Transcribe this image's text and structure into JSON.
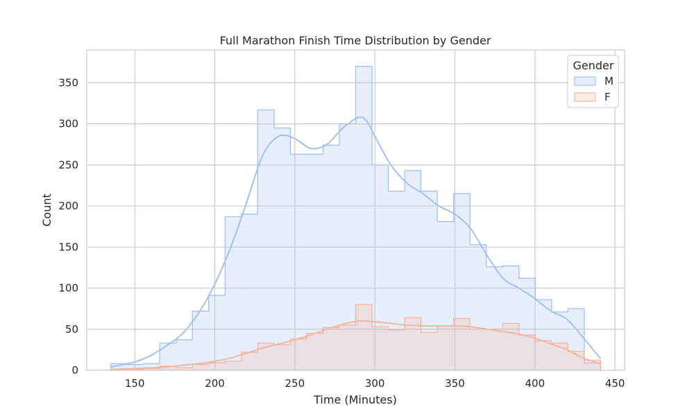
{
  "chart_data": {
    "type": "histogram",
    "title": "Full Marathon Finish Time Distribution by Gender",
    "xlabel": "Time (Minutes)",
    "ylabel": "Count",
    "xlim": [
      120,
      456
    ],
    "ylim": [
      0,
      390
    ],
    "xticks": [
      150,
      200,
      250,
      300,
      350,
      400,
      450
    ],
    "yticks": [
      0,
      50,
      100,
      150,
      200,
      250,
      300,
      350
    ],
    "grid": true,
    "legend": {
      "title": "Gender",
      "placement": "top-right"
    },
    "bin_edges": [
      135,
      145.2,
      155.4,
      165.6,
      175.8,
      186,
      196.2,
      206.4,
      216.6,
      226.8,
      237,
      247.2,
      257.4,
      267.6,
      277.8,
      288,
      298.2,
      308.4,
      318.6,
      328.8,
      339,
      349.2,
      359.4,
      369.6,
      379.8,
      390,
      400.2,
      410.4,
      420.6,
      430.8,
      441
    ],
    "series": [
      {
        "name": "M",
        "color": "#a1c0f5",
        "counts": [
          8,
          7,
          8,
          33,
          37,
          72,
          91,
          187,
          190,
          317,
          295,
          263,
          263,
          274,
          300,
          370,
          250,
          218,
          243,
          218,
          181,
          215,
          153,
          126,
          127,
          112,
          86,
          71,
          75,
          9
        ],
        "kde": [
          [
            135,
            4
          ],
          [
            150,
            10
          ],
          [
            160,
            18
          ],
          [
            170,
            30
          ],
          [
            180,
            45
          ],
          [
            190,
            70
          ],
          [
            200,
            105
          ],
          [
            210,
            150
          ],
          [
            220,
            205
          ],
          [
            230,
            262
          ],
          [
            240,
            285
          ],
          [
            250,
            282
          ],
          [
            260,
            270
          ],
          [
            270,
            275
          ],
          [
            280,
            295
          ],
          [
            290,
            308
          ],
          [
            295,
            303
          ],
          [
            300,
            285
          ],
          [
            310,
            250
          ],
          [
            320,
            228
          ],
          [
            330,
            215
          ],
          [
            340,
            200
          ],
          [
            350,
            190
          ],
          [
            360,
            172
          ],
          [
            370,
            140
          ],
          [
            380,
            112
          ],
          [
            390,
            100
          ],
          [
            400,
            87
          ],
          [
            410,
            72
          ],
          [
            420,
            62
          ],
          [
            430,
            40
          ],
          [
            441,
            14
          ]
        ]
      },
      {
        "name": "F",
        "color": "#f5b49b",
        "counts": [
          1,
          1,
          2,
          5,
          3,
          7,
          9,
          11,
          22,
          33,
          31,
          38,
          45,
          52,
          55,
          80,
          53,
          49,
          64,
          46,
          54,
          63,
          50,
          50,
          57,
          43,
          36,
          33,
          23,
          12
        ],
        "kde": [
          [
            135,
            1
          ],
          [
            150,
            2
          ],
          [
            160,
            3
          ],
          [
            170,
            4
          ],
          [
            180,
            6
          ],
          [
            190,
            8
          ],
          [
            200,
            11
          ],
          [
            210,
            15
          ],
          [
            220,
            21
          ],
          [
            230,
            27
          ],
          [
            240,
            32
          ],
          [
            250,
            37
          ],
          [
            260,
            43
          ],
          [
            270,
            50
          ],
          [
            280,
            56
          ],
          [
            290,
            60
          ],
          [
            300,
            59
          ],
          [
            310,
            57
          ],
          [
            320,
            55
          ],
          [
            330,
            54
          ],
          [
            340,
            54
          ],
          [
            350,
            54
          ],
          [
            360,
            53
          ],
          [
            370,
            50
          ],
          [
            380,
            47
          ],
          [
            390,
            44
          ],
          [
            400,
            39
          ],
          [
            410,
            32
          ],
          [
            420,
            25
          ],
          [
            430,
            15
          ],
          [
            441,
            8
          ]
        ]
      }
    ]
  }
}
